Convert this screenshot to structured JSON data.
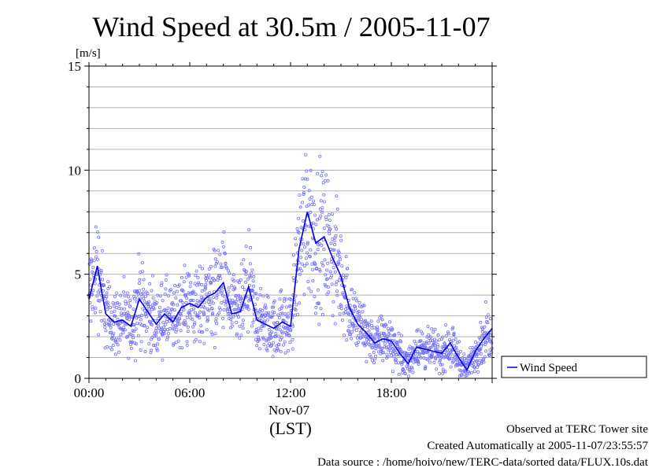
{
  "chart_data": {
    "type": "scatter",
    "title": "Wind Speed at 30.5m / 2005-11-07",
    "ylabel": "[m/s]",
    "xlabel": "(LST)",
    "ylim": [
      0,
      15
    ],
    "yticks": [
      "0",
      "5",
      "10",
      "15"
    ],
    "xticks": [
      "00:00",
      "06:00",
      "12:00",
      "18:00"
    ],
    "date_label": "Nov-07",
    "legend": {
      "label": "Wind Speed",
      "placement": "bottom-right-outside"
    },
    "grid": true,
    "series": [
      {
        "name": "Wind Speed",
        "color": "#0000dd",
        "scatter_color": "#7070ff",
        "x_hours": [
          0,
          0.5,
          0.75,
          1,
          1.5,
          2,
          2.5,
          3,
          3.5,
          4,
          4.5,
          5,
          5.5,
          6,
          6.5,
          7,
          7.5,
          8,
          8.5,
          9,
          9.5,
          10,
          10.5,
          11,
          11.5,
          12,
          12.5,
          13,
          13.5,
          14,
          14.5,
          15,
          15.5,
          16,
          16.5,
          17,
          17.5,
          18,
          18.5,
          19,
          19.5,
          20,
          20.5,
          21,
          21.5,
          22,
          22.5,
          23,
          23.5,
          24
        ],
        "y": [
          3.8,
          5.4,
          4.2,
          3.1,
          2.7,
          2.8,
          2.5,
          3.8,
          3.2,
          2.6,
          3.1,
          2.7,
          3.4,
          3.6,
          3.4,
          3.9,
          4.1,
          4.6,
          3.1,
          3.2,
          4.4,
          2.8,
          2.6,
          2.4,
          2.7,
          2.5,
          6.2,
          8.0,
          6.5,
          6.8,
          5.8,
          4.9,
          3.4,
          2.6,
          2.2,
          1.7,
          1.9,
          1.8,
          1.2,
          0.7,
          1.5,
          1.4,
          1.3,
          1.2,
          1.7,
          1.0,
          0.4,
          1.3,
          1.9,
          2.4
        ]
      }
    ]
  },
  "footer": {
    "line1": "Observed at TERC Tower site",
    "line2": "Created Automatically at 2005-11-07/23:55:57",
    "line3": "Data source : /home/hoivo/new/TERC-data/sorted  data/FLUX.10s.dat"
  }
}
